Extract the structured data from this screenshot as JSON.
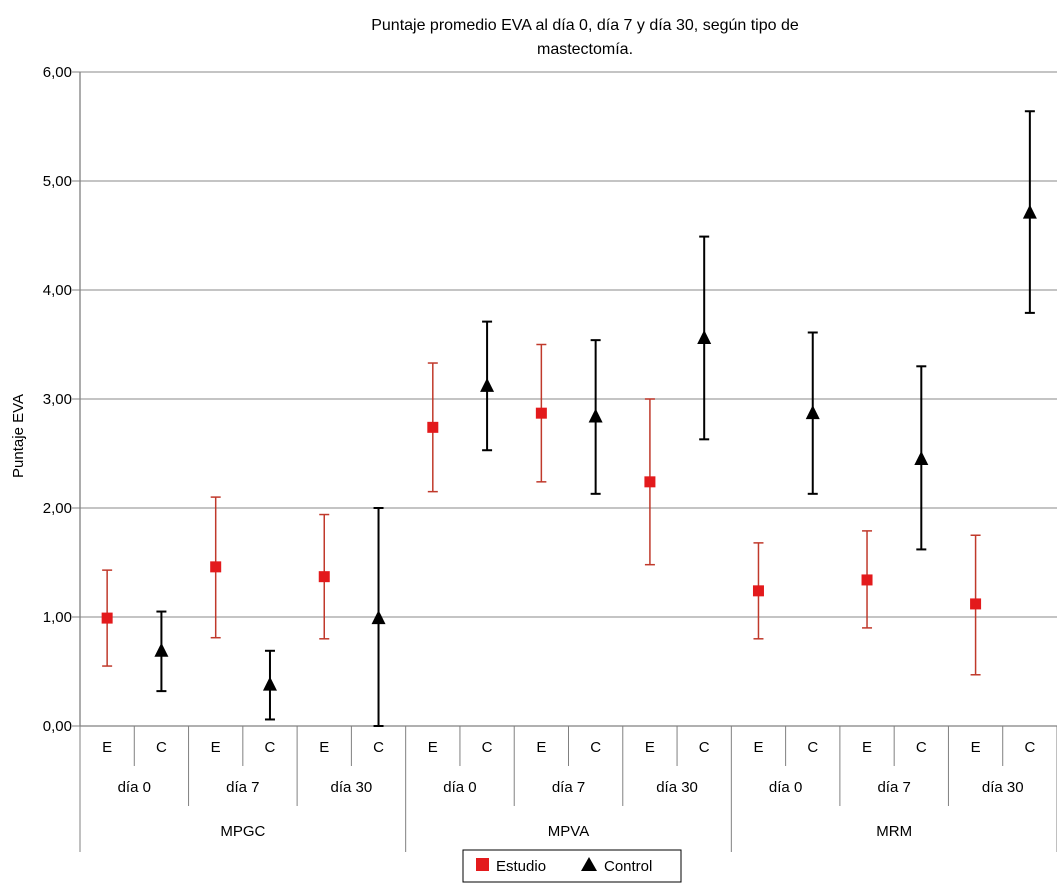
{
  "chart_data": {
    "type": "scatter",
    "title_lines": [
      "Puntaje promedio EVA al día 0, día 7 y día 30, según tipo de",
      "mastectomía."
    ],
    "ylabel": "Puntaje EVA",
    "ylim": [
      0,
      6
    ],
    "yticks": [
      "0,00",
      "1,00",
      "2,00",
      "3,00",
      "4,00",
      "5,00",
      "6,00"
    ],
    "grid": true,
    "groups": [
      "MPGC",
      "MPVA",
      "MRM"
    ],
    "days": [
      "día 0",
      "día 7",
      "día 30"
    ],
    "levels": [
      "E",
      "C",
      "E",
      "C",
      "E",
      "C",
      "E",
      "C",
      "E",
      "C",
      "E",
      "C",
      "E",
      "C",
      "E",
      "C",
      "E",
      "C"
    ],
    "series": [
      {
        "name": "Estudio",
        "code": "E",
        "color": "#e31a1c",
        "error_color": "#c0392b",
        "marker": "square",
        "points": [
          {
            "group": "MPGC",
            "day": "día 0",
            "mean": 0.99,
            "low": 0.55,
            "high": 1.43
          },
          {
            "group": "MPGC",
            "day": "día 7",
            "mean": 1.46,
            "low": 0.81,
            "high": 2.1
          },
          {
            "group": "MPGC",
            "day": "día 30",
            "mean": 1.37,
            "low": 0.8,
            "high": 1.94
          },
          {
            "group": "MPVA",
            "day": "día 0",
            "mean": 2.74,
            "low": 2.15,
            "high": 3.33
          },
          {
            "group": "MPVA",
            "day": "día 7",
            "mean": 2.87,
            "low": 2.24,
            "high": 3.5
          },
          {
            "group": "MPVA",
            "day": "día 30",
            "mean": 2.24,
            "low": 1.48,
            "high": 3.0
          },
          {
            "group": "MRM",
            "day": "día 0",
            "mean": 1.24,
            "low": 0.8,
            "high": 1.68
          },
          {
            "group": "MRM",
            "day": "día 7",
            "mean": 1.34,
            "low": 0.9,
            "high": 1.79
          },
          {
            "group": "MRM",
            "day": "día 30",
            "mean": 1.12,
            "low": 0.47,
            "high": 1.75
          }
        ]
      },
      {
        "name": "Control",
        "code": "C",
        "color": "#000000",
        "error_color": "#000000",
        "marker": "triangle",
        "points": [
          {
            "group": "MPGC",
            "day": "día 0",
            "mean": 0.69,
            "low": 0.32,
            "high": 1.05
          },
          {
            "group": "MPGC",
            "day": "día 7",
            "mean": 0.38,
            "low": 0.06,
            "high": 0.69
          },
          {
            "group": "MPGC",
            "day": "día 30",
            "mean": 0.99,
            "low": 0.0,
            "high": 2.0
          },
          {
            "group": "MPVA",
            "day": "día 0",
            "mean": 3.12,
            "low": 2.53,
            "high": 3.71
          },
          {
            "group": "MPVA",
            "day": "día 7",
            "mean": 2.84,
            "low": 2.13,
            "high": 3.54
          },
          {
            "group": "MPVA",
            "day": "día 30",
            "mean": 3.56,
            "low": 2.63,
            "high": 4.49
          },
          {
            "group": "MRM",
            "day": "día 0",
            "mean": 2.87,
            "low": 2.13,
            "high": 3.61
          },
          {
            "group": "MRM",
            "day": "día 7",
            "mean": 2.45,
            "low": 1.62,
            "high": 3.3
          },
          {
            "group": "MRM",
            "day": "día 30",
            "mean": 4.71,
            "low": 3.79,
            "high": 5.64
          }
        ]
      }
    ],
    "legend": {
      "placement": "bottom-center",
      "items": [
        "Estudio",
        "Control"
      ]
    }
  }
}
